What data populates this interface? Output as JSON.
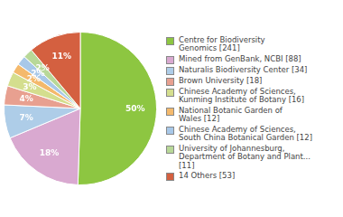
{
  "chart_data": {
    "type": "pie",
    "categories": [
      "Centre for Biodiversity\nGenomics [241]",
      "Mined from GenBank, NCBI [88]",
      "Naturalis Biodiversity Center [34]",
      "Brown University [18]",
      "Chinese Academy of Sciences,\nKunming Institute of Botany [16]",
      "National Botanic Garden of\nWales [12]",
      "Chinese Academy of Sciences,\nSouth China Botanical Garden [12]",
      "University of Johannesburg,\nDepartment of Botany and Plant...\n[11]",
      "14 Others [53]"
    ],
    "values": [
      50,
      18,
      7,
      4,
      3,
      2,
      2,
      2,
      11
    ],
    "value_labels": [
      "50%",
      "18%",
      "7%",
      "4%",
      "3%",
      "2%",
      "2%",
      "2%",
      "11%"
    ],
    "colors": [
      "#8dc641",
      "#d9a9d0",
      "#aecde8",
      "#e8a090",
      "#d4de8e",
      "#f4b96c",
      "#a8c8e8",
      "#b8d898",
      "#d46040"
    ],
    "data_labels": true,
    "legend": "right"
  }
}
